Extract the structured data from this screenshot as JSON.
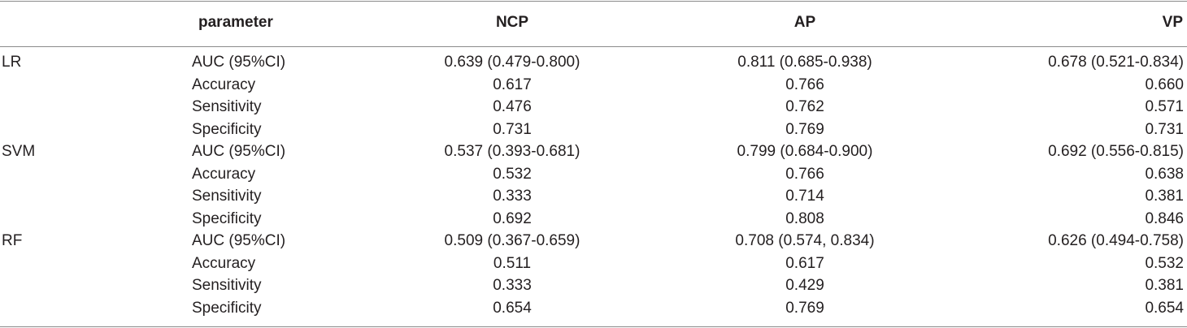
{
  "table": {
    "headers": {
      "group": "",
      "parameter": "parameter",
      "ncp": "NCP",
      "ap": "AP",
      "vp": "VP"
    },
    "rows": [
      {
        "group": "LR",
        "parameter": "AUC (95%CI)",
        "ncp": "0.639 (0.479-0.800)",
        "ap": "0.811 (0.685-0.938)",
        "vp": "0.678 (0.521-0.834)"
      },
      {
        "group": "",
        "parameter": "Accuracy",
        "ncp": "0.617",
        "ap": "0.766",
        "vp": "0.660"
      },
      {
        "group": "",
        "parameter": "Sensitivity",
        "ncp": "0.476",
        "ap": "0.762",
        "vp": "0.571"
      },
      {
        "group": "",
        "parameter": "Specificity",
        "ncp": "0.731",
        "ap": "0.769",
        "vp": "0.731"
      },
      {
        "group": "SVM",
        "parameter": "AUC (95%CI)",
        "ncp": "0.537 (0.393-0.681)",
        "ap": "0.799 (0.684-0.900)",
        "vp": "0.692 (0.556-0.815)"
      },
      {
        "group": "",
        "parameter": "Accuracy",
        "ncp": "0.532",
        "ap": "0.766",
        "vp": "0.638"
      },
      {
        "group": "",
        "parameter": "Sensitivity",
        "ncp": "0.333",
        "ap": "0.714",
        "vp": "0.381"
      },
      {
        "group": "",
        "parameter": "Specificity",
        "ncp": "0.692",
        "ap": "0.808",
        "vp": "0.846"
      },
      {
        "group": "RF",
        "parameter": "AUC (95%CI)",
        "ncp": "0.509 (0.367-0.659)",
        "ap": "0.708 (0.574, 0.834)",
        "vp": "0.626 (0.494-0.758)"
      },
      {
        "group": "",
        "parameter": "Accuracy",
        "ncp": "0.511",
        "ap": "0.617",
        "vp": "0.532"
      },
      {
        "group": "",
        "parameter": "Sensitivity",
        "ncp": "0.333",
        "ap": "0.429",
        "vp": "0.381"
      },
      {
        "group": "",
        "parameter": "Specificity",
        "ncp": "0.654",
        "ap": "0.769",
        "vp": "0.654"
      }
    ]
  }
}
